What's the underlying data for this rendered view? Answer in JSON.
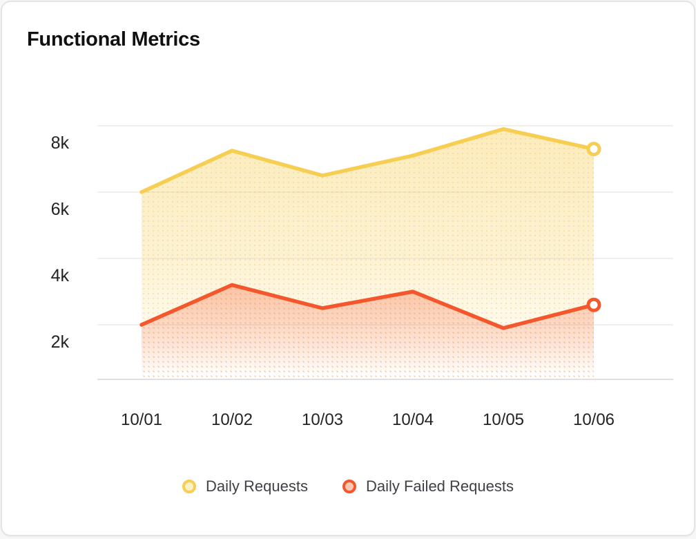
{
  "card": {
    "title": "Functional Metrics"
  },
  "chart_data": {
    "type": "area",
    "title": "Functional Metrics",
    "x_labels": [
      "10/01",
      "10/02",
      "10/03",
      "10/04",
      "10/05",
      "10/06"
    ],
    "y_ticks": [
      {
        "label": "8k",
        "value": 8000
      },
      {
        "label": "6k",
        "value": 6000
      },
      {
        "label": "4k",
        "value": 4000
      },
      {
        "label": "2k",
        "value": 2000
      }
    ],
    "ylim": [
      500,
      8800
    ],
    "grid": true,
    "legend_position": "bottom",
    "series": [
      {
        "name": "Daily Requests",
        "color": "#F6CE52",
        "values": [
          6000,
          7250,
          6500,
          7100,
          7900,
          7300
        ]
      },
      {
        "name": "Daily Failed Requests",
        "color": "#F4572B",
        "values": [
          2000,
          3200,
          2500,
          3000,
          1900,
          2600
        ]
      }
    ]
  },
  "colors": {
    "grid_line": "#eaeaec",
    "axis_line": "#e0e0e2",
    "tick_text": "#232327",
    "card_border": "#e4e4e7"
  }
}
